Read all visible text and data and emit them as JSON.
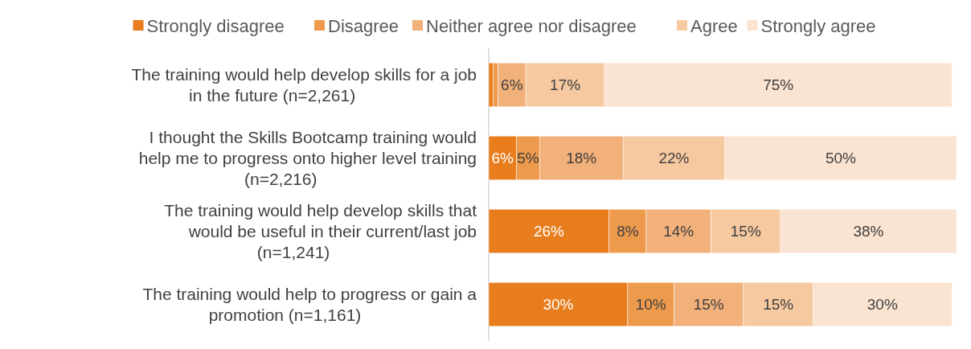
{
  "chart_data": {
    "type": "bar",
    "orientation": "horizontal",
    "stacked": true,
    "legend": "top",
    "categories": [
      "The training would help develop skills for a job in the future (n=2,261)",
      "I thought the Skills Bootcamp training would help me to progress onto higher level training (n=2,216)",
      "The training would help develop skills that would be useful in their current/last job (n=1,241)",
      "The training would help to progress or gain a promotion (n=1,161)"
    ],
    "series": [
      {
        "name": "Strongly disagree",
        "color": "#e87d1e",
        "values": [
          1,
          6,
          26,
          30
        ],
        "value_labels": [
          null,
          "6%",
          "26%",
          "30%"
        ]
      },
      {
        "name": "Disagree",
        "color": "#ee9a4d",
        "values": [
          1,
          5,
          8,
          10
        ],
        "value_labels": [
          null,
          "5%",
          "8%",
          "10%"
        ]
      },
      {
        "name": "Neither agree nor disagree",
        "color": "#f2b07a",
        "values": [
          6,
          18,
          14,
          15
        ],
        "value_labels": [
          "6%",
          "18%",
          "14%",
          "15%"
        ]
      },
      {
        "name": "Agree",
        "color": "#f7c9a0",
        "values": [
          17,
          22,
          15,
          15
        ],
        "value_labels": [
          "17%",
          "22%",
          "15%",
          "15%"
        ]
      },
      {
        "name": "Strongly agree",
        "color": "#fae3d0",
        "values": [
          75,
          50,
          38,
          30
        ],
        "value_labels": [
          "75%",
          "50%",
          "38%",
          "30%"
        ]
      }
    ]
  }
}
